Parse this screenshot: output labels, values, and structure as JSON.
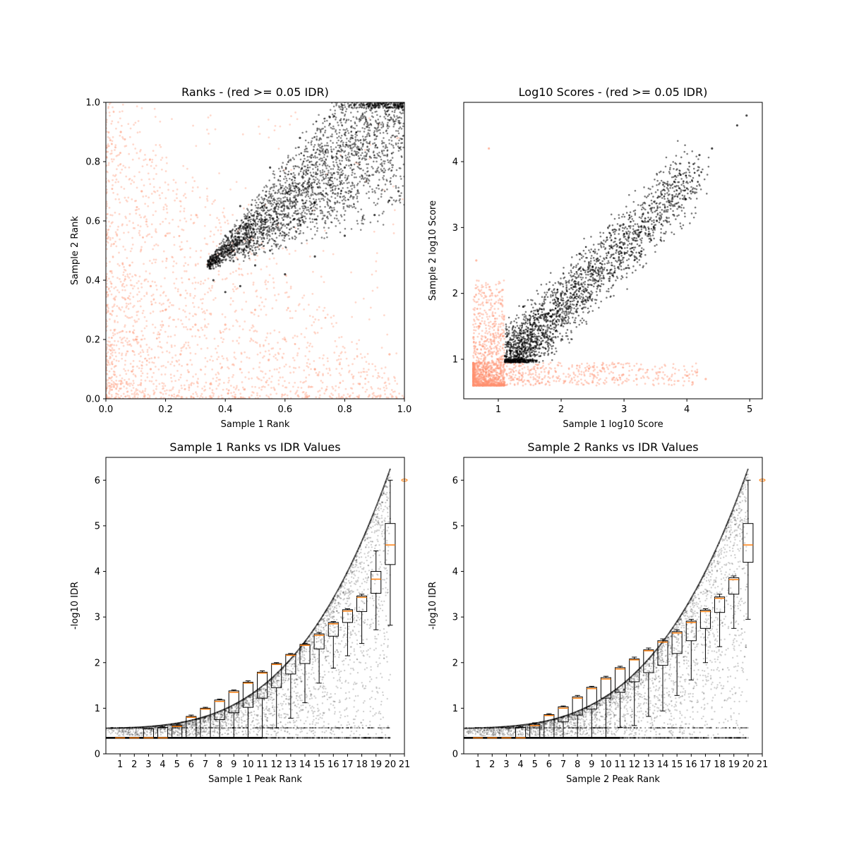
{
  "chart_data": [
    {
      "type": "scatter",
      "title": "Ranks - (red >= 0.05 IDR)",
      "xlabel": "Sample 1 Rank",
      "ylabel": "Sample 2 Rank",
      "xlim": [
        0,
        1
      ],
      "ylim": [
        0,
        1
      ],
      "xticks": [
        "0.0",
        "0.2",
        "0.4",
        "0.6",
        "0.8",
        "1.0"
      ],
      "yticks": [
        "0.0",
        "0.2",
        "0.4",
        "0.6",
        "0.8",
        "1.0"
      ],
      "grid": false,
      "colors": {
        "passed": "#000000",
        "failed": "#ff9270"
      },
      "series": [
        {
          "points": [
            [
              0.36,
              0.4
            ],
            [
              0.4,
              0.36
            ],
            [
              0.45,
              0.38
            ],
            [
              0.5,
              0.45
            ],
            [
              0.55,
              0.5
            ],
            [
              0.6,
              0.55
            ],
            [
              0.65,
              0.6
            ],
            [
              0.7,
              0.66
            ],
            [
              0.75,
              0.72
            ],
            [
              0.8,
              0.78
            ],
            [
              0.85,
              0.84
            ],
            [
              0.9,
              0.89
            ],
            [
              0.95,
              0.94
            ],
            [
              1.0,
              1.0
            ],
            [
              0.4,
              0.55
            ],
            [
              0.45,
              0.65
            ],
            [
              0.55,
              0.78
            ],
            [
              0.65,
              0.88
            ],
            [
              0.75,
              0.95
            ],
            [
              0.6,
              0.42
            ],
            [
              0.7,
              0.48
            ],
            [
              0.8,
              0.55
            ],
            [
              0.9,
              0.62
            ],
            [
              0.98,
              0.7
            ]
          ]
        },
        {
          "points": [
            [
              0.05,
              0.05
            ],
            [
              0.1,
              0.2
            ],
            [
              0.15,
              0.1
            ],
            [
              0.2,
              0.3
            ],
            [
              0.25,
              0.15
            ],
            [
              0.3,
              0.25
            ],
            [
              0.08,
              0.45
            ],
            [
              0.12,
              0.7
            ],
            [
              0.05,
              0.9
            ],
            [
              0.2,
              0.55
            ],
            [
              0.45,
              0.1
            ],
            [
              0.6,
              0.2
            ],
            [
              0.35,
              0.05
            ],
            [
              0.7,
              0.1
            ],
            [
              0.85,
              0.05
            ],
            [
              0.95,
              0.15
            ],
            [
              0.25,
              0.35
            ],
            [
              0.4,
              0.25
            ],
            [
              0.5,
              0.3
            ],
            [
              0.15,
              0.38
            ]
          ]
        }
      ]
    },
    {
      "type": "scatter",
      "title": "Log10 Scores - (red >= 0.05 IDR)",
      "xlabel": "Sample 1 log10 Score",
      "ylabel": "Sample 2 log10 Score",
      "xlim": [
        0.45,
        5.2
      ],
      "ylim": [
        0.4,
        4.9
      ],
      "xticks": [
        "1",
        "2",
        "3",
        "4",
        "5"
      ],
      "yticks": [
        "1",
        "2",
        "3",
        "4"
      ],
      "grid": false,
      "colors": {
        "passed": "#000000",
        "failed": "#ff9270"
      },
      "series": [
        {
          "points": [
            [
              1.15,
              1.0
            ],
            [
              1.2,
              1.3
            ],
            [
              1.3,
              1.1
            ],
            [
              1.5,
              1.6
            ],
            [
              1.8,
              1.7
            ],
            [
              2.0,
              2.0
            ],
            [
              2.2,
              2.1
            ],
            [
              2.5,
              2.4
            ],
            [
              2.8,
              2.7
            ],
            [
              3.0,
              2.9
            ],
            [
              3.3,
              3.2
            ],
            [
              3.6,
              3.5
            ],
            [
              3.9,
              3.8
            ],
            [
              4.2,
              4.1
            ],
            [
              4.4,
              4.2
            ],
            [
              4.8,
              4.55
            ],
            [
              4.95,
              4.7
            ],
            [
              1.6,
              1.2
            ],
            [
              1.4,
              1.8
            ],
            [
              2.3,
              2.6
            ]
          ]
        },
        {
          "points": [
            [
              0.6,
              0.6
            ],
            [
              0.8,
              0.8
            ],
            [
              1.0,
              1.0
            ],
            [
              0.7,
              1.5
            ],
            [
              0.9,
              2.0
            ],
            [
              0.65,
              2.5
            ],
            [
              0.85,
              4.2
            ],
            [
              1.3,
              0.7
            ],
            [
              1.8,
              0.8
            ],
            [
              2.5,
              0.65
            ],
            [
              3.2,
              0.7
            ],
            [
              4.0,
              0.75
            ],
            [
              4.3,
              0.7
            ],
            [
              0.75,
              1.2
            ],
            [
              1.1,
              0.65
            ]
          ]
        }
      ]
    },
    {
      "type": "boxplot",
      "title": "Sample 1 Ranks vs IDR Values",
      "xlabel": "Sample 1 Peak Rank",
      "ylabel": "-log10 IDR",
      "xlim": [
        0,
        21
      ],
      "ylim": [
        0,
        6.5
      ],
      "xticks": [
        "1",
        "2",
        "3",
        "4",
        "5",
        "6",
        "7",
        "8",
        "9",
        "10",
        "11",
        "12",
        "13",
        "14",
        "15",
        "16",
        "17",
        "18",
        "19",
        "20",
        "21"
      ],
      "yticks": [
        "0",
        "1",
        "2",
        "3",
        "4",
        "5",
        "6"
      ],
      "grid": false,
      "colors": {
        "box": "#000000",
        "median": "#ff7f0e",
        "points": "#000000"
      },
      "boxes": [
        {
          "x": 1,
          "q1": 0.35,
          "median": 0.35,
          "q3": 0.36,
          "low": 0.35,
          "high": 0.36
        },
        {
          "x": 2,
          "q1": 0.35,
          "median": 0.35,
          "q3": 0.36,
          "low": 0.35,
          "high": 0.36
        },
        {
          "x": 3,
          "q1": 0.35,
          "median": 0.35,
          "q3": 0.55,
          "low": 0.35,
          "high": 0.55
        },
        {
          "x": 4,
          "q1": 0.35,
          "median": 0.35,
          "q3": 0.58,
          "low": 0.35,
          "high": 0.6
        },
        {
          "x": 5,
          "q1": 0.36,
          "median": 0.6,
          "q3": 0.62,
          "low": 0.35,
          "high": 0.65
        },
        {
          "x": 6,
          "q1": 0.36,
          "median": 0.8,
          "q3": 0.82,
          "low": 0.35,
          "high": 0.85
        },
        {
          "x": 7,
          "q1": 0.36,
          "median": 0.98,
          "q3": 1.0,
          "low": 0.35,
          "high": 1.02
        },
        {
          "x": 8,
          "q1": 0.75,
          "median": 1.15,
          "q3": 1.18,
          "low": 0.35,
          "high": 1.2
        },
        {
          "x": 9,
          "q1": 0.9,
          "median": 1.35,
          "q3": 1.38,
          "low": 0.35,
          "high": 1.4
        },
        {
          "x": 10,
          "q1": 1.02,
          "median": 1.55,
          "q3": 1.57,
          "low": 0.35,
          "high": 1.6
        },
        {
          "x": 11,
          "q1": 1.22,
          "median": 1.77,
          "q3": 1.79,
          "low": 0.35,
          "high": 1.82
        },
        {
          "x": 12,
          "q1": 1.45,
          "median": 1.96,
          "q3": 1.98,
          "low": 0.57,
          "high": 2.0
        },
        {
          "x": 13,
          "q1": 1.75,
          "median": 2.16,
          "q3": 2.18,
          "low": 0.78,
          "high": 2.2
        },
        {
          "x": 14,
          "q1": 1.98,
          "median": 2.38,
          "q3": 2.4,
          "low": 1.12,
          "high": 2.42
        },
        {
          "x": 15,
          "q1": 2.3,
          "median": 2.6,
          "q3": 2.63,
          "low": 1.55,
          "high": 2.66
        },
        {
          "x": 16,
          "q1": 2.58,
          "median": 2.85,
          "q3": 2.88,
          "low": 1.88,
          "high": 2.9
        },
        {
          "x": 17,
          "q1": 2.88,
          "median": 3.13,
          "q3": 3.16,
          "low": 2.15,
          "high": 3.18
        },
        {
          "x": 18,
          "q1": 3.12,
          "median": 3.43,
          "q3": 3.46,
          "low": 2.42,
          "high": 3.5
        },
        {
          "x": 19,
          "q1": 3.52,
          "median": 3.83,
          "q3": 4.0,
          "low": 2.72,
          "high": 4.45
        },
        {
          "x": 20,
          "q1": 4.15,
          "median": 4.58,
          "q3": 5.05,
          "low": 2.82,
          "high": 6.0
        }
      ],
      "outliers": [
        [
          21.0,
          6.0
        ]
      ]
    },
    {
      "type": "boxplot",
      "title": "Sample 2 Ranks vs IDR Values",
      "xlabel": "Sample 2 Peak Rank",
      "ylabel": "-log10 IDR",
      "xlim": [
        0,
        21
      ],
      "ylim": [
        0,
        6.5
      ],
      "xticks": [
        "1",
        "2",
        "3",
        "4",
        "5",
        "6",
        "7",
        "8",
        "9",
        "10",
        "11",
        "12",
        "13",
        "14",
        "15",
        "16",
        "17",
        "18",
        "19",
        "20",
        "21"
      ],
      "yticks": [
        "0",
        "1",
        "2",
        "3",
        "4",
        "5",
        "6"
      ],
      "grid": false,
      "colors": {
        "box": "#000000",
        "median": "#ff7f0e",
        "points": "#000000"
      },
      "boxes": [
        {
          "x": 1,
          "q1": 0.35,
          "median": 0.35,
          "q3": 0.36,
          "low": 0.35,
          "high": 0.36
        },
        {
          "x": 2,
          "q1": 0.35,
          "median": 0.35,
          "q3": 0.36,
          "low": 0.35,
          "high": 0.36
        },
        {
          "x": 3,
          "q1": 0.35,
          "median": 0.35,
          "q3": 0.36,
          "low": 0.35,
          "high": 0.36
        },
        {
          "x": 4,
          "q1": 0.35,
          "median": 0.35,
          "q3": 0.58,
          "low": 0.35,
          "high": 0.6
        },
        {
          "x": 5,
          "q1": 0.36,
          "median": 0.62,
          "q3": 0.65,
          "low": 0.35,
          "high": 0.68
        },
        {
          "x": 6,
          "q1": 0.36,
          "median": 0.84,
          "q3": 0.86,
          "low": 0.35,
          "high": 0.88
        },
        {
          "x": 7,
          "q1": 0.7,
          "median": 1.0,
          "q3": 1.03,
          "low": 0.35,
          "high": 1.05
        },
        {
          "x": 8,
          "q1": 0.85,
          "median": 1.22,
          "q3": 1.25,
          "low": 0.35,
          "high": 1.28
        },
        {
          "x": 9,
          "q1": 0.98,
          "median": 1.43,
          "q3": 1.46,
          "low": 0.35,
          "high": 1.48
        },
        {
          "x": 10,
          "q1": 1.22,
          "median": 1.64,
          "q3": 1.67,
          "low": 0.35,
          "high": 1.7
        },
        {
          "x": 11,
          "q1": 1.35,
          "median": 1.86,
          "q3": 1.89,
          "low": 0.58,
          "high": 1.92
        },
        {
          "x": 12,
          "q1": 1.58,
          "median": 2.06,
          "q3": 2.08,
          "low": 0.62,
          "high": 2.12
        },
        {
          "x": 13,
          "q1": 1.78,
          "median": 2.26,
          "q3": 2.28,
          "low": 0.82,
          "high": 2.32
        },
        {
          "x": 14,
          "q1": 1.94,
          "median": 2.45,
          "q3": 2.48,
          "low": 0.94,
          "high": 2.52
        },
        {
          "x": 15,
          "q1": 2.2,
          "median": 2.65,
          "q3": 2.68,
          "low": 1.28,
          "high": 2.72
        },
        {
          "x": 16,
          "q1": 2.48,
          "median": 2.88,
          "q3": 2.91,
          "low": 1.62,
          "high": 2.95
        },
        {
          "x": 17,
          "q1": 2.75,
          "median": 3.12,
          "q3": 3.15,
          "low": 2.0,
          "high": 3.18
        },
        {
          "x": 18,
          "q1": 3.1,
          "median": 3.41,
          "q3": 3.44,
          "low": 2.35,
          "high": 3.5
        },
        {
          "x": 19,
          "q1": 3.5,
          "median": 3.82,
          "q3": 3.86,
          "low": 2.75,
          "high": 3.9
        },
        {
          "x": 20,
          "q1": 4.2,
          "median": 4.58,
          "q3": 5.05,
          "low": 2.95,
          "high": 6.0
        }
      ],
      "outliers": [
        [
          21.0,
          6.0
        ]
      ]
    }
  ]
}
